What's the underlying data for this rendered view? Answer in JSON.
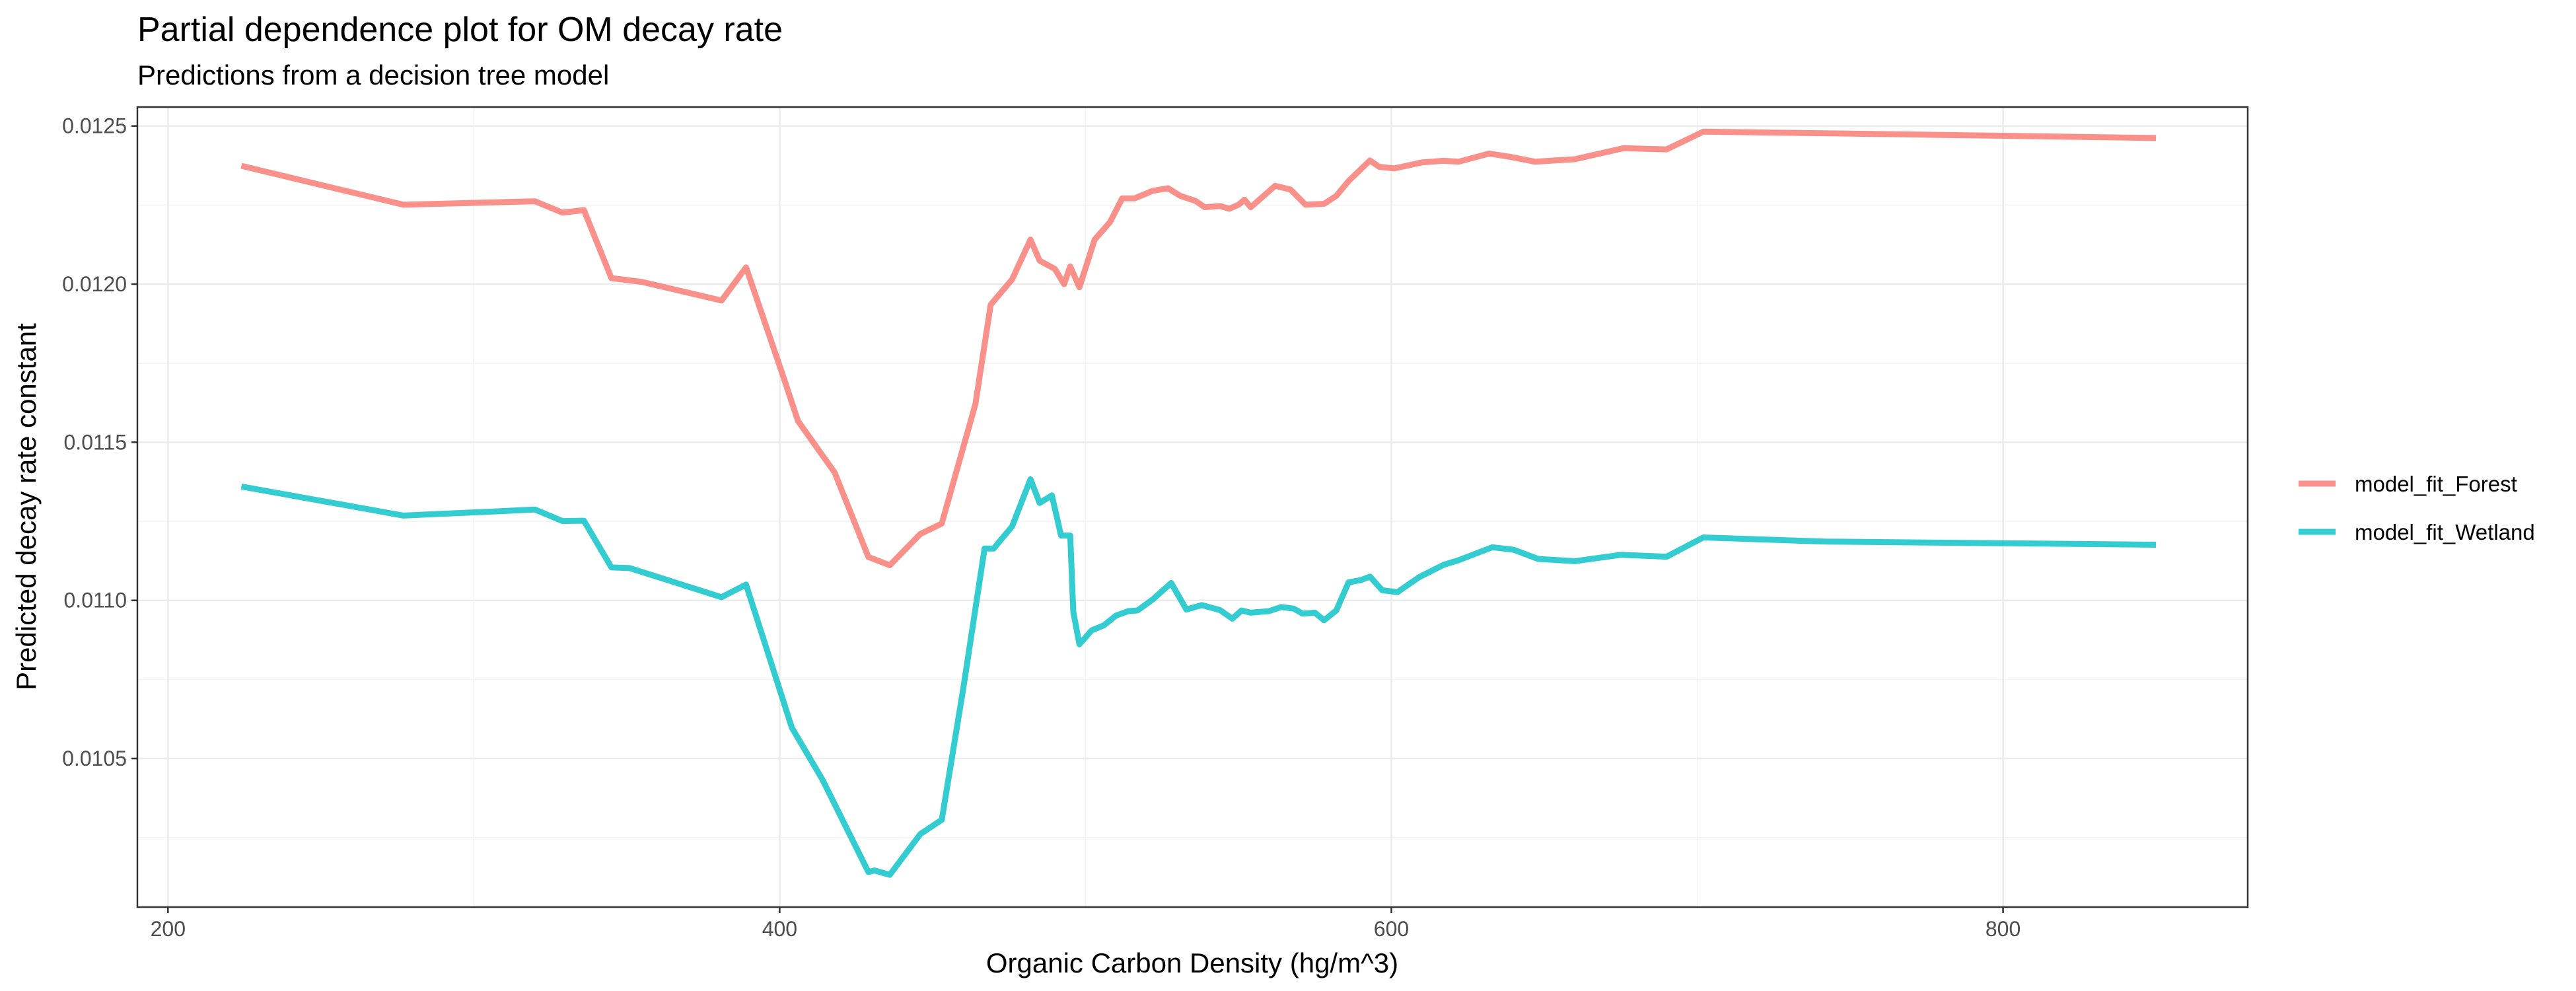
{
  "chart_data": {
    "type": "line",
    "title": "Partial dependence plot for OM decay rate",
    "subtitle": "Predictions from a decision tree model",
    "xlabel": "Organic Carbon Density (hg/m^3)",
    "ylabel": "Predicted decay rate constant",
    "xlim": [
      190,
      880
    ],
    "ylim": [
      0.01003,
      0.01256
    ],
    "x_ticks": [
      200,
      400,
      600,
      800
    ],
    "x_tick_labels": [
      "200",
      "400",
      "600",
      "800"
    ],
    "y_ticks": [
      0.0105,
      0.011,
      0.0115,
      0.012,
      0.0125
    ],
    "y_tick_labels": [
      "0.0105",
      "0.0110",
      "0.0115",
      "0.0120",
      "0.0125"
    ],
    "grid": true,
    "legend_position": "right",
    "series": [
      {
        "name": "model_fit_Forest",
        "color": "#F8766D",
        "points": [
          [
            224,
            0.012374
          ],
          [
            277,
            0.012251
          ],
          [
            320,
            0.012262
          ],
          [
            329,
            0.012226
          ],
          [
            336,
            0.012234
          ],
          [
            345,
            0.012019
          ],
          [
            355,
            0.012007
          ],
          [
            381,
            0.011948
          ],
          [
            389,
            0.012053
          ],
          [
            401,
            0.011713
          ],
          [
            406,
            0.011567
          ],
          [
            418,
            0.011404
          ],
          [
            429,
            0.011137
          ],
          [
            436,
            0.011111
          ],
          [
            446,
            0.01121
          ],
          [
            453,
            0.011243
          ],
          [
            464,
            0.01162
          ],
          [
            469,
            0.011935
          ],
          [
            476,
            0.012015
          ],
          [
            482,
            0.012141
          ],
          [
            485,
            0.012074
          ],
          [
            490,
            0.012048
          ],
          [
            493,
            0.012
          ],
          [
            495,
            0.012056
          ],
          [
            498,
            0.01199
          ],
          [
            503,
            0.012141
          ],
          [
            508,
            0.012196
          ],
          [
            512,
            0.012271
          ],
          [
            516,
            0.012271
          ],
          [
            522,
            0.012295
          ],
          [
            527,
            0.012303
          ],
          [
            531,
            0.012279
          ],
          [
            536,
            0.012263
          ],
          [
            539,
            0.012243
          ],
          [
            544,
            0.012247
          ],
          [
            547,
            0.012238
          ],
          [
            550,
            0.012251
          ],
          [
            552,
            0.012267
          ],
          [
            554,
            0.012243
          ],
          [
            562,
            0.012311
          ],
          [
            567,
            0.012299
          ],
          [
            572,
            0.012251
          ],
          [
            578,
            0.012254
          ],
          [
            582,
            0.012279
          ],
          [
            586,
            0.012326
          ],
          [
            593,
            0.012391
          ],
          [
            596,
            0.012371
          ],
          [
            601,
            0.012366
          ],
          [
            610,
            0.012385
          ],
          [
            617,
            0.01239
          ],
          [
            622,
            0.012387
          ],
          [
            632,
            0.012413
          ],
          [
            639,
            0.012402
          ],
          [
            647,
            0.012387
          ],
          [
            660,
            0.012395
          ],
          [
            676,
            0.01243
          ],
          [
            690,
            0.012426
          ],
          [
            702,
            0.012482
          ],
          [
            742,
            0.012477
          ],
          [
            850,
            0.012462
          ]
        ]
      },
      {
        "name": "model_fit_Wetland",
        "color": "#00BFC4",
        "points": [
          [
            224,
            0.01136
          ],
          [
            277,
            0.011268
          ],
          [
            320,
            0.011287
          ],
          [
            329,
            0.011251
          ],
          [
            336,
            0.011252
          ],
          [
            345,
            0.011104
          ],
          [
            351,
            0.011102
          ],
          [
            381,
            0.01101
          ],
          [
            389,
            0.01105
          ],
          [
            404,
            0.010597
          ],
          [
            414,
            0.010433
          ],
          [
            429,
            0.010141
          ],
          [
            431,
            0.010146
          ],
          [
            436,
            0.010132
          ],
          [
            446,
            0.010261
          ],
          [
            453,
            0.010306
          ],
          [
            460,
            0.010719
          ],
          [
            467,
            0.011164
          ],
          [
            470,
            0.011164
          ],
          [
            476,
            0.011234
          ],
          [
            482,
            0.011383
          ],
          [
            485,
            0.011308
          ],
          [
            489,
            0.011332
          ],
          [
            492,
            0.011205
          ],
          [
            495,
            0.011205
          ],
          [
            496,
            0.010964
          ],
          [
            498,
            0.010861
          ],
          [
            502,
            0.010905
          ],
          [
            506,
            0.010921
          ],
          [
            510,
            0.010952
          ],
          [
            514,
            0.010966
          ],
          [
            517,
            0.010968
          ],
          [
            522,
            0.011003
          ],
          [
            528,
            0.011055
          ],
          [
            533,
            0.010971
          ],
          [
            538,
            0.010985
          ],
          [
            544,
            0.010969
          ],
          [
            548,
            0.010942
          ],
          [
            551,
            0.010968
          ],
          [
            554,
            0.010961
          ],
          [
            560,
            0.010966
          ],
          [
            564,
            0.010979
          ],
          [
            568,
            0.010974
          ],
          [
            571,
            0.010958
          ],
          [
            575,
            0.010961
          ],
          [
            578,
            0.010937
          ],
          [
            582,
            0.010968
          ],
          [
            586,
            0.011057
          ],
          [
            590,
            0.011064
          ],
          [
            593,
            0.011075
          ],
          [
            597,
            0.011032
          ],
          [
            602,
            0.011026
          ],
          [
            609,
            0.011073
          ],
          [
            617,
            0.011112
          ],
          [
            622,
            0.011127
          ],
          [
            633,
            0.011168
          ],
          [
            640,
            0.01116
          ],
          [
            648,
            0.011131
          ],
          [
            660,
            0.011124
          ],
          [
            675,
            0.011144
          ],
          [
            690,
            0.011138
          ],
          [
            702,
            0.011199
          ],
          [
            742,
            0.011186
          ],
          [
            850,
            0.011176
          ]
        ]
      }
    ]
  }
}
